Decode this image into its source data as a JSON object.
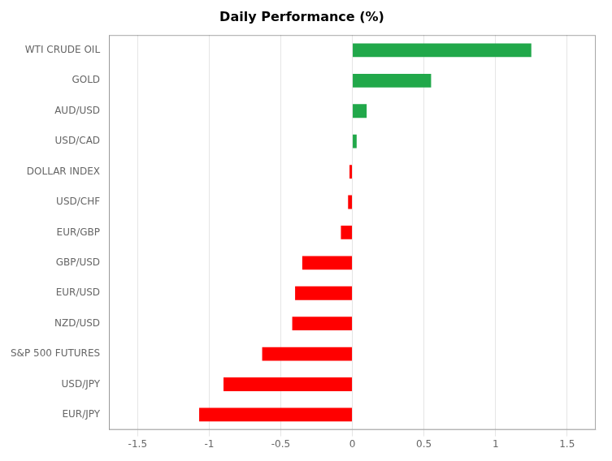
{
  "chart_data": {
    "type": "bar",
    "orientation": "horizontal",
    "title": "Daily Performance (%)",
    "categories": [
      "WTI CRUDE OIL",
      "GOLD",
      "AUD/USD",
      "USD/CAD",
      "DOLLAR INDEX",
      "USD/CHF",
      "EUR/GBP",
      "GBP/USD",
      "EUR/USD",
      "NZD/USD",
      "S&P 500 FUTURES",
      "USD/JPY",
      "EUR/JPY"
    ],
    "values": [
      1.25,
      0.55,
      0.1,
      0.03,
      -0.02,
      -0.03,
      -0.08,
      -0.35,
      -0.4,
      -0.42,
      -0.63,
      -0.9,
      -1.07
    ],
    "colors": [
      "#21A84A",
      "#21A84A",
      "#21A84A",
      "#21A84A",
      "#FF0000",
      "#FF0000",
      "#FF0000",
      "#FF0000",
      "#FF0000",
      "#FF0000",
      "#FF0000",
      "#FF0000",
      "#FF0000"
    ],
    "xlim": [
      -1.7,
      1.7
    ],
    "xticks": [
      -1.5,
      -1,
      -0.5,
      0,
      0.5,
      1,
      1.5
    ],
    "grid": true
  }
}
